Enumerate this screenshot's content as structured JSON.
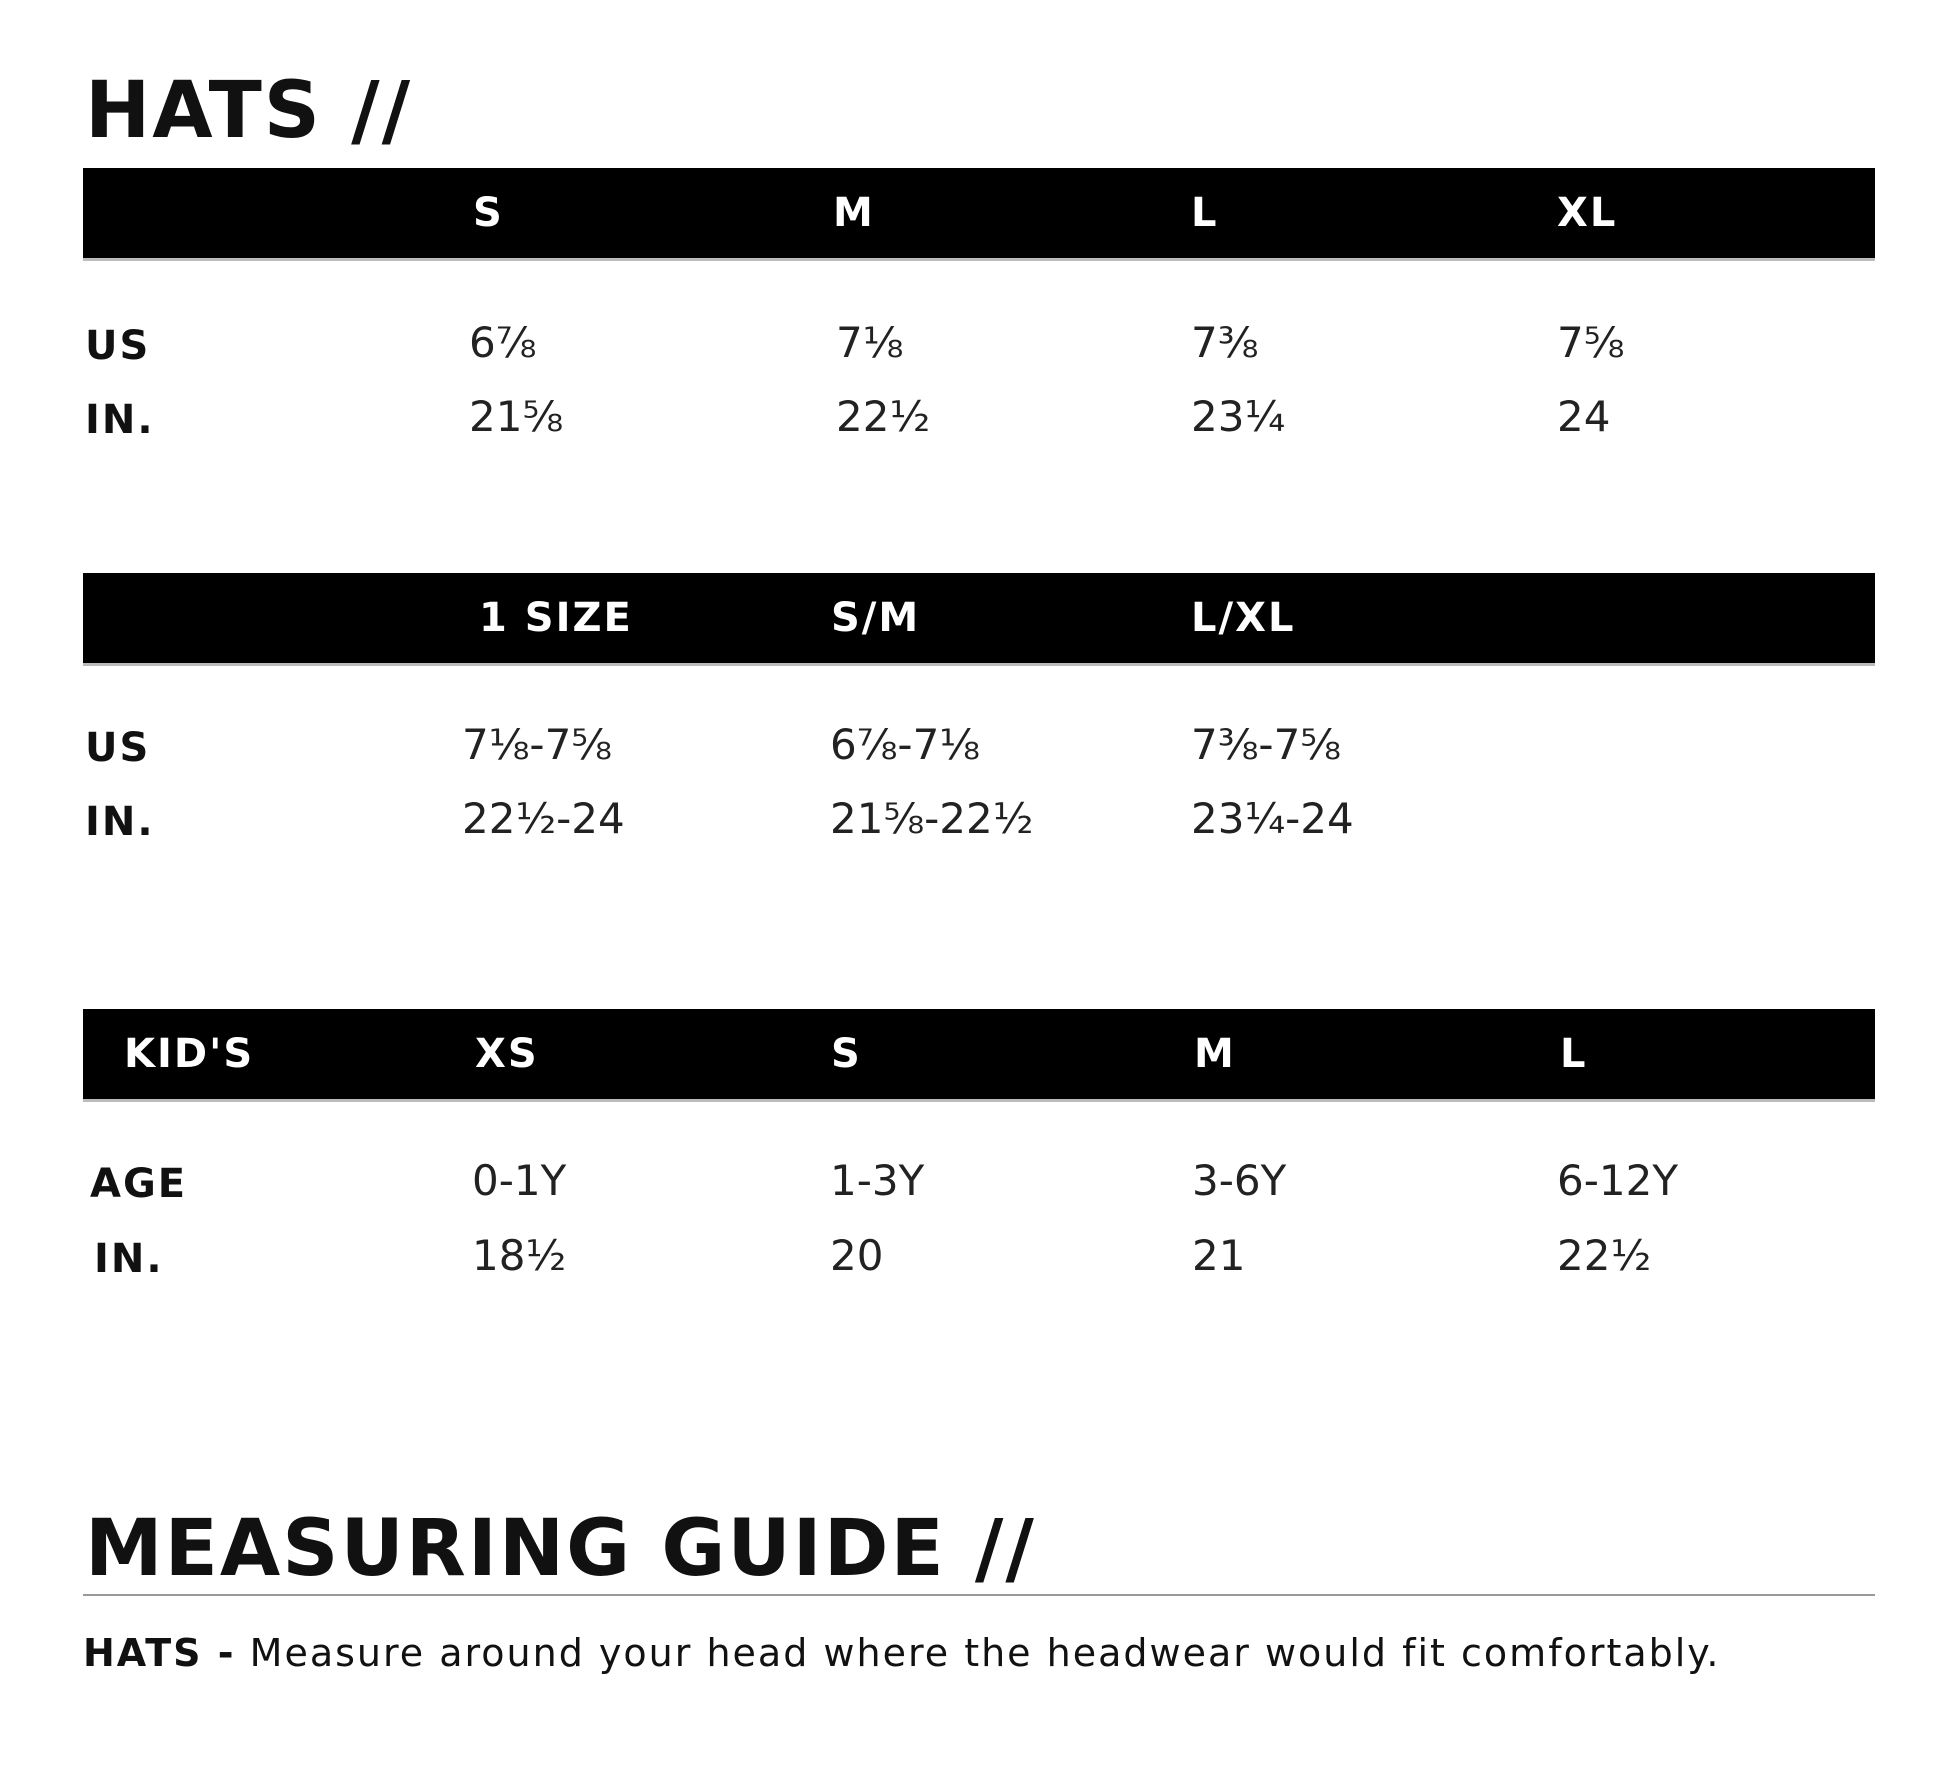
{
  "title": "HATS //",
  "adult_table": {
    "headers": [
      "",
      "S",
      "M",
      "L",
      "XL"
    ],
    "rows": [
      {
        "label": "US",
        "values": [
          "6⅞",
          "7⅛",
          "7⅜",
          "7⅝"
        ]
      },
      {
        "label": "IN.",
        "values": [
          "21⅝",
          "22½",
          "23¼",
          "24"
        ]
      }
    ]
  },
  "adjustable_table": {
    "headers": [
      "",
      "1 SIZE",
      "S/M",
      "L/XL"
    ],
    "rows": [
      {
        "label": "US",
        "values": [
          "7⅛-7⅝",
          "6⅞-7⅛",
          "7⅜-7⅝"
        ]
      },
      {
        "label": "IN.",
        "values": [
          "22½-24",
          "21⅝-22½",
          "23¼-24"
        ]
      }
    ]
  },
  "kids_table": {
    "headers": [
      "KID'S",
      "XS",
      "S",
      "M",
      "L"
    ],
    "rows": [
      {
        "label": "AGE",
        "values": [
          "0-1Y",
          "1-3Y",
          "3-6Y",
          "6-12Y"
        ]
      },
      {
        "label": "IN.",
        "values": [
          "18½",
          "20",
          "21",
          "22½"
        ]
      }
    ]
  },
  "measuring_guide": {
    "title": "MEASURING GUIDE //",
    "item_label": "HATS -",
    "item_text": "Measure around your head where the headwear would fit comfortably."
  }
}
